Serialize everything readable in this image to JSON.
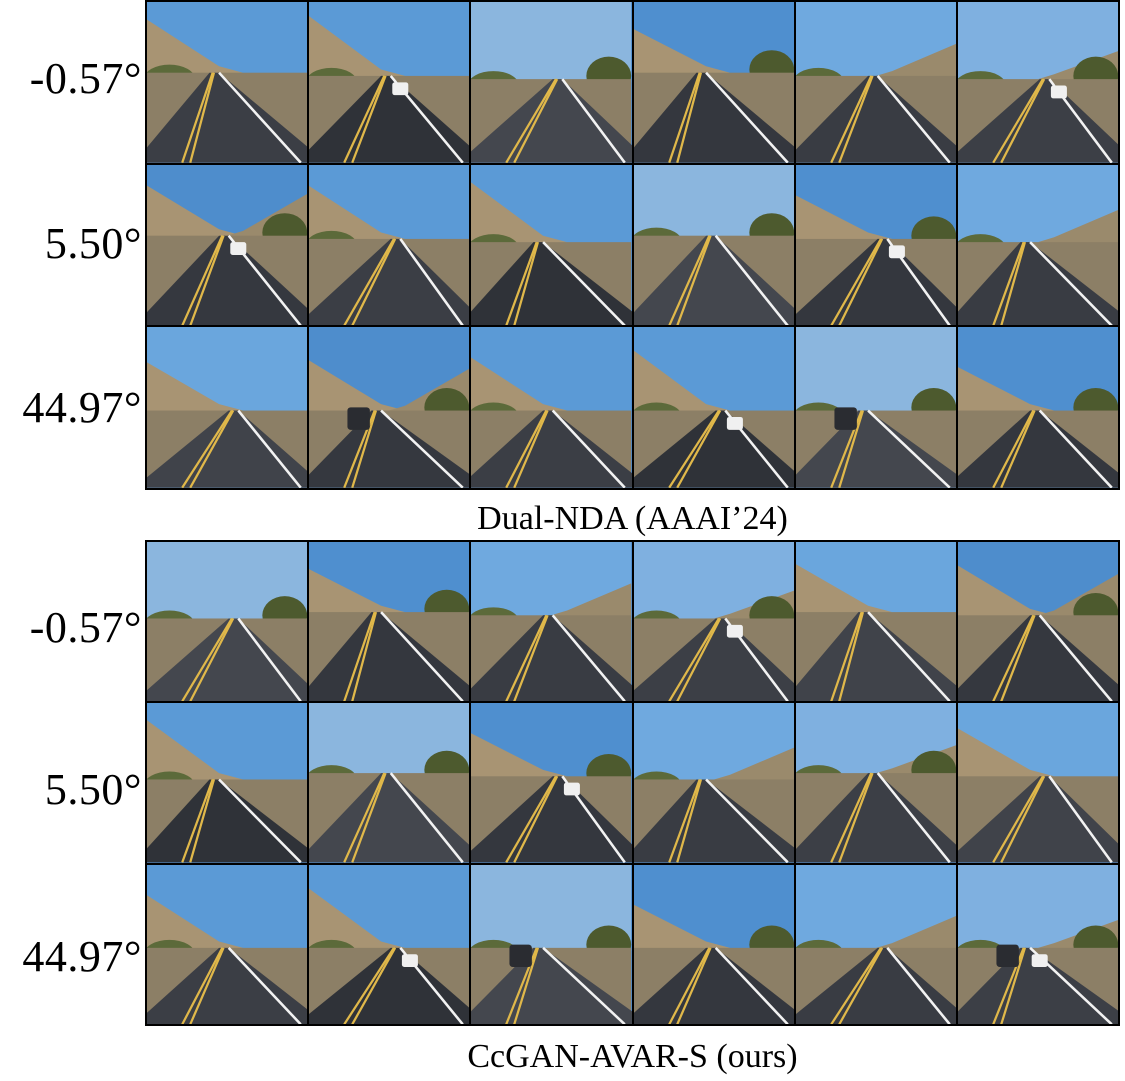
{
  "row_labels": [
    "-0.57°",
    "5.50°",
    "44.97°"
  ],
  "panels": [
    {
      "caption": "Dual-NDA (AAAI’24)"
    },
    {
      "caption": "CcGAN-AVAR-S (ours)"
    }
  ],
  "colors": {
    "sky": "#5a9bd8",
    "road": "#3a3d44",
    "lane_line": "#e0b84a",
    "edge_line": "#f2f2f2",
    "hill": "#a89473",
    "vegetation": "#5c6a3a",
    "grid_border": "#000000"
  }
}
